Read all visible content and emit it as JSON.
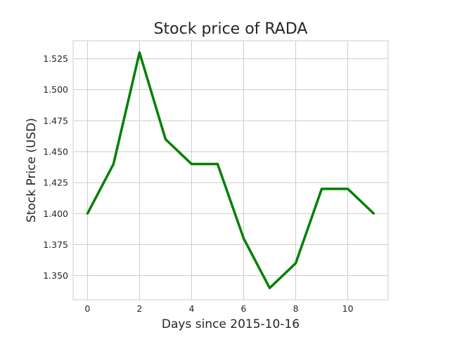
{
  "chart_data": {
    "type": "line",
    "title": "Stock price of RADA",
    "xlabel": "Days since 2015-10-16",
    "ylabel": "Stock Price (USD)",
    "xlim": [
      -0.55,
      11.55
    ],
    "ylim": [
      1.3305,
      1.5395
    ],
    "x_ticks": [
      0,
      2,
      4,
      6,
      8,
      10
    ],
    "y_ticks": [
      1.35,
      1.375,
      1.4,
      1.425,
      1.45,
      1.475,
      1.5,
      1.525
    ],
    "y_tick_labels": [
      "1.350",
      "1.375",
      "1.400",
      "1.425",
      "1.450",
      "1.475",
      "1.500",
      "1.525"
    ],
    "grid": true,
    "series": [
      {
        "color": "#008000",
        "x": [
          0,
          1,
          2,
          3,
          4,
          5,
          6,
          7,
          8,
          9,
          10,
          11
        ],
        "y": [
          1.4,
          1.44,
          1.53,
          1.46,
          1.44,
          1.44,
          1.38,
          1.34,
          1.36,
          1.42,
          1.42,
          1.4
        ]
      }
    ]
  }
}
